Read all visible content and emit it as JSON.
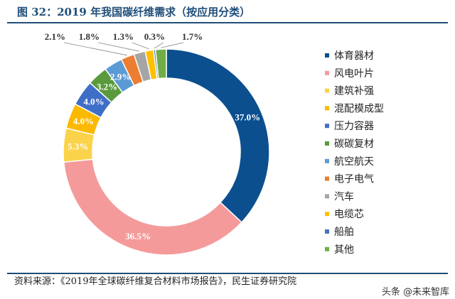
{
  "title": "图 32：2019 年我国碳纤维需求（按应用分类）",
  "source": "资料来源：《2019年全球碳纤维复合材料市场报告》，民生证券研究院",
  "watermark": "头条 @未来智库",
  "chart_data": {
    "type": "pie",
    "donut": true,
    "title": "图 32：2019 年我国碳纤维需求（按应用分类）",
    "legend_position": "right",
    "unit": "%",
    "categories": [
      "体育器材",
      "风电叶片",
      "建筑补强",
      "混配模成型",
      "压力容器",
      "碳碳复材",
      "航空航天",
      "电子电气",
      "汽车",
      "电缆芯",
      "船舶",
      "其他"
    ],
    "values": [
      37.0,
      36.5,
      5.3,
      4.0,
      4.0,
      3.2,
      2.9,
      2.1,
      1.8,
      1.3,
      0.3,
      1.7
    ],
    "labels": [
      "37.0%",
      "36.5%",
      "5.3%",
      "4.0%",
      "4.0%",
      "3.2%",
      "2.9%",
      "2.1%",
      "1.8%",
      "1.3%",
      "0.3%",
      "1.7%"
    ],
    "colors": [
      "#0b4f8f",
      "#f59a9a",
      "#fbd34a",
      "#fbb900",
      "#3f6ec8",
      "#5a9a3c",
      "#5b9bd5",
      "#ed7d31",
      "#a5a5a5",
      "#ffc000",
      "#4472c4",
      "#70ad47"
    ]
  }
}
